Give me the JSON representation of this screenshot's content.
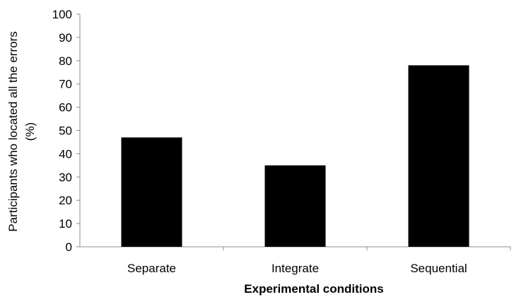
{
  "chart_data": {
    "type": "bar",
    "categories": [
      "Separate",
      "Integrate",
      "Sequential"
    ],
    "values": [
      47,
      35,
      78
    ],
    "title": "",
    "xlabel": "Experimental conditions",
    "ylabel_lines": [
      "Participants who located all the errors",
      "(%)"
    ],
    "ylim": [
      0,
      100
    ],
    "yticks": [
      0,
      10,
      20,
      30,
      40,
      50,
      60,
      70,
      80,
      90,
      100
    ],
    "grid": false,
    "bar_color": "#000000"
  }
}
